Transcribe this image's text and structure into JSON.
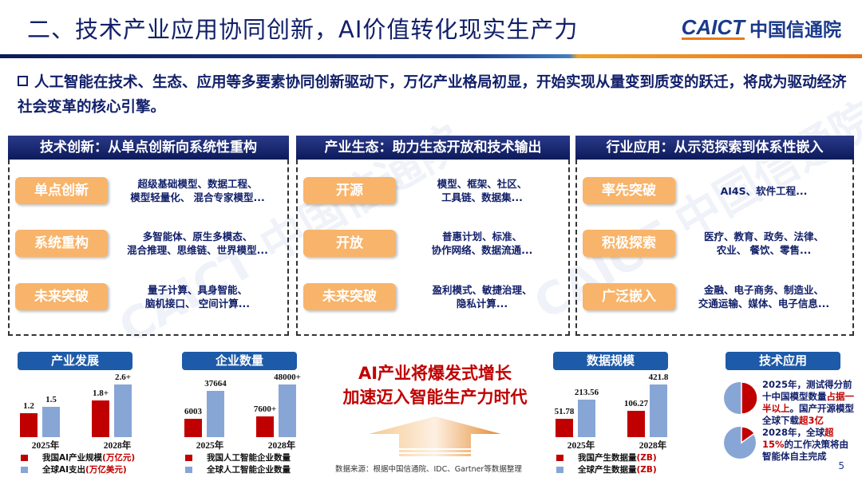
{
  "header": {
    "title": "二、技术产业应用协同创新，AI价值转化现实生产力",
    "logo_en": "CAICT",
    "logo_cn": "中国信通院"
  },
  "intro": "人工智能在技术、生态、应用等多要素协同创新驱动下，万亿产业格局初显，开始实现从量变到质变的跃迁，将成为驱动经济社会变革的核心引擎。",
  "panels": [
    {
      "title": "技术创新：从单点创新向系统性重构",
      "rows": [
        {
          "label": "单点创新",
          "desc": "超级基础模型、数据工程、\n模型轻量化、 混合专家模型..."
        },
        {
          "label": "系统重构",
          "desc": "多智能体、原生多模态、\n混合推理、思维链、世界模型..."
        },
        {
          "label": "未来突破",
          "desc": "量子计算、具身智能、\n脑机接口、 空间计算..."
        }
      ]
    },
    {
      "title": "产业生态：助力生态开放和技术输出",
      "rows": [
        {
          "label": "开源",
          "desc": "模型、框架、社区、\n工具链、数据集..."
        },
        {
          "label": "开放",
          "desc": "普惠计划、标准、\n协作网络、数据流通..."
        },
        {
          "label": "未来突破",
          "desc": "盈利模式、敏捷治理、\n隐私计算..."
        }
      ]
    },
    {
      "title": "行业应用：从示范探索到体系性嵌入",
      "rows": [
        {
          "label": "率先突破",
          "desc": "AI4S、软件工程..."
        },
        {
          "label": "积极探索",
          "desc": "医疗、教育、政务、法律、\n农业、 餐饮、零售..."
        },
        {
          "label": "广泛嵌入",
          "desc": "金融、电子商务、制造业、\n交通运输、媒体、电子信息..."
        }
      ]
    }
  ],
  "colors": {
    "china": "#c00000",
    "global": "#87a6d6",
    "pill": "#f8b46a",
    "navy": "#0d1a5a"
  },
  "chart_data": [
    {
      "type": "bar",
      "title": "产业发展",
      "categories": [
        "2025年",
        "2028年"
      ],
      "series": [
        {
          "name": "我国AI产业规模",
          "unit": "(万亿元)",
          "values": [
            1.2,
            1.8
          ],
          "labels": [
            "1.2",
            "1.8+"
          ]
        },
        {
          "name": "全球AI支出",
          "unit": "(万亿美元)",
          "values": [
            1.5,
            2.6
          ],
          "labels": [
            "1.5",
            "2.6+"
          ]
        }
      ]
    },
    {
      "type": "bar",
      "title": "企业数量",
      "categories": [
        "2025年",
        "2028年"
      ],
      "series": [
        {
          "name": "我国人工智能企业数量",
          "unit": "",
          "values": [
            6003,
            7600
          ],
          "labels": [
            "6003",
            "7600+"
          ]
        },
        {
          "name": "全球人工智能企业数量",
          "unit": "",
          "values": [
            37664,
            48000
          ],
          "labels": [
            "37664",
            "48000+"
          ]
        }
      ]
    },
    {
      "type": "bar",
      "title": "数据规模",
      "categories": [
        "2025年",
        "2028年"
      ],
      "series": [
        {
          "name": "我国产生数据量",
          "unit": " (ZB)",
          "values": [
            51.78,
            106.27
          ],
          "labels": [
            "51.78",
            "106.27"
          ]
        },
        {
          "name": "全球产生数据量",
          "unit": " (ZB)",
          "values": [
            213.56,
            421.8
          ],
          "labels": [
            "213.56",
            "421.8"
          ]
        }
      ]
    }
  ],
  "slogan": {
    "line1": "AI产业将爆发式增长",
    "line2": "加速迈入智能生产力时代"
  },
  "source": "数据来源：根据中国信通院、IDC、Gartner等数据整理",
  "tech": {
    "title": "技术应用",
    "item1": {
      "share": 0.5,
      "a": "2025年，测试得分前十中国模型数量",
      "b": "占据一半以上",
      "c": "。国产开源模型全球下载",
      "d": "超3亿"
    },
    "item2": {
      "share": 0.15,
      "a": "2028年，全球",
      "b": "超15%",
      "c": "的工作决策将由智能体自主完成"
    }
  },
  "page_number": "5"
}
